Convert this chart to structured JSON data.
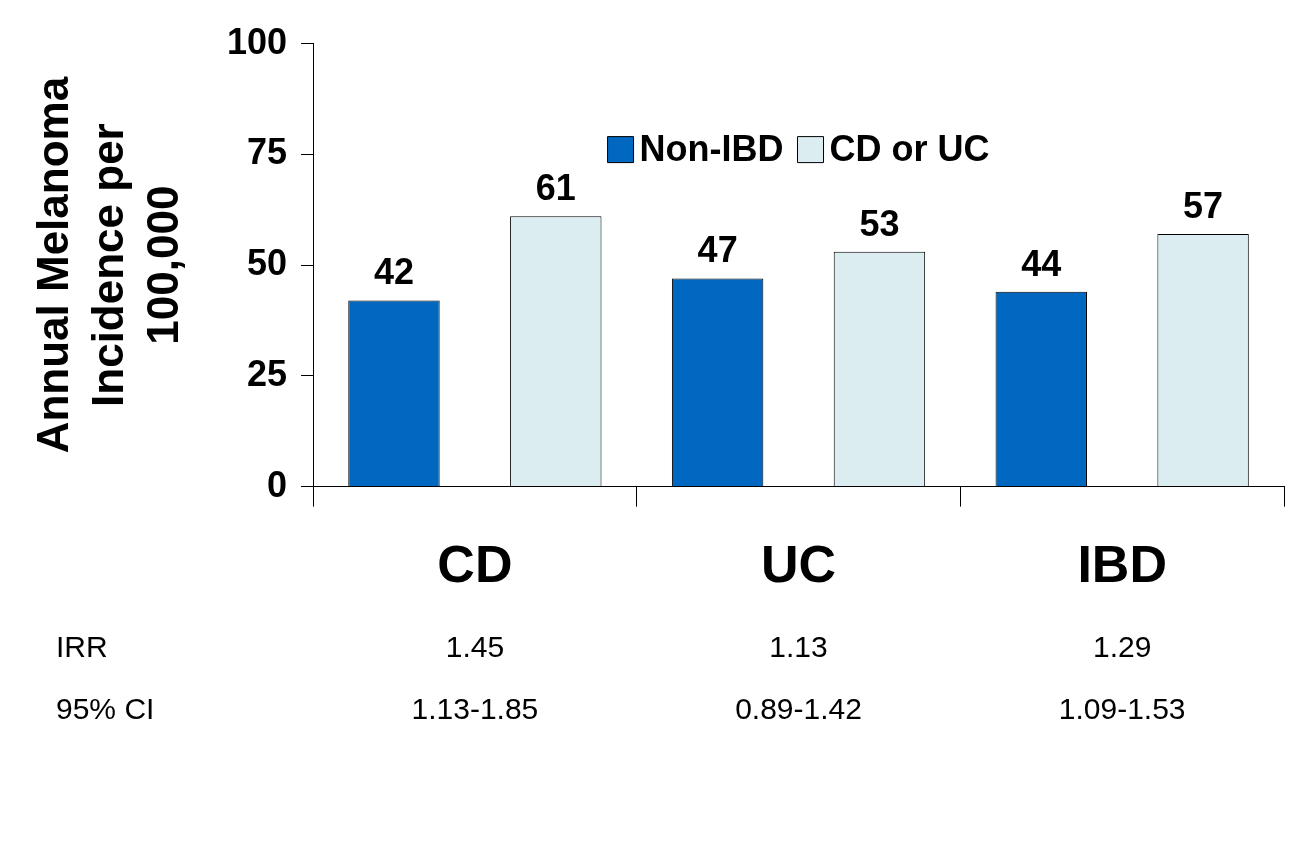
{
  "chart_data": {
    "type": "bar",
    "ylabel": "Annual Melanoma Incidence per 100,000",
    "categories": [
      "CD",
      "UC",
      "IBD"
    ],
    "series": [
      {
        "name": "Non-IBD",
        "color": "#0068c0",
        "values": [
          42,
          47,
          44
        ]
      },
      {
        "name": "CD or UC",
        "color": "#dbedf0",
        "values": [
          61,
          53,
          57
        ]
      }
    ],
    "ylim": [
      0,
      100
    ],
    "yticks": [
      0,
      25,
      50,
      75,
      100
    ],
    "grid": false,
    "legend": "top",
    "data_labels": true,
    "annotations": [
      "IRR",
      "1.45",
      "1.13",
      "1.29",
      "95% CI",
      "1.13-1.85",
      "0.89-1.42",
      "1.09-1.53"
    ]
  }
}
